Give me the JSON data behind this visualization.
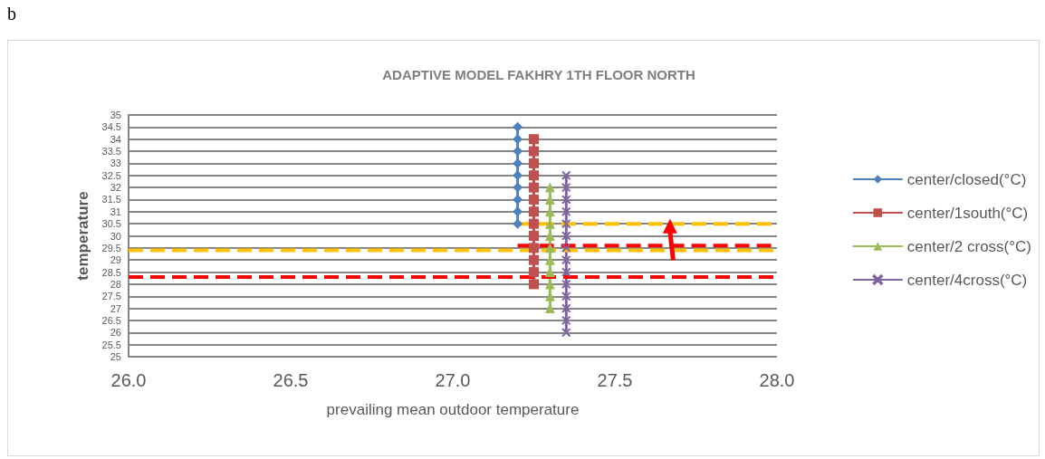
{
  "chart_data": {
    "type": "line",
    "title": "ADAPTIVE MODEL FAKHRY 1TH FLOOR NORTH",
    "xlabel": "prevailing mean outdoor temperature",
    "ylabel": "temperature",
    "annotations": [
      "b"
    ],
    "xlim": [
      26,
      28
    ],
    "xticks": [
      {
        "value": 26,
        "label": "26.0"
      },
      {
        "value": 26.5,
        "label": "26.5"
      },
      {
        "value": 27,
        "label": "27.0"
      },
      {
        "value": 27.5,
        "label": "27.5"
      },
      {
        "value": 28,
        "label": "28.0"
      }
    ],
    "ylim": [
      25,
      35
    ],
    "yticks": [
      25,
      25.5,
      26,
      26.5,
      27,
      27.5,
      28,
      28.5,
      29,
      29.5,
      30,
      30.5,
      31,
      31.5,
      32,
      32.5,
      33,
      33.5,
      34,
      34.5,
      35
    ],
    "grid": "y",
    "legend": "right",
    "series": [
      {
        "name": "center/closed(°C)",
        "color": "#4f81bd",
        "marker": "diamond",
        "x": [
          27.2,
          27.2,
          27.2,
          27.2,
          27.2,
          27.2,
          27.2,
          27.2,
          27.2
        ],
        "values": [
          30.5,
          31,
          31.5,
          32,
          32.5,
          33,
          33.5,
          34,
          34.5
        ]
      },
      {
        "name": "center/1south(°C)",
        "color": "#c0504d",
        "marker": "square",
        "x": [
          27.25,
          27.25,
          27.25,
          27.25,
          27.25,
          27.25,
          27.25,
          27.25,
          27.25,
          27.25,
          27.25,
          27.25,
          27.25
        ],
        "values": [
          28,
          28.5,
          29,
          29.5,
          30,
          30.5,
          31,
          31.5,
          32,
          32.5,
          33,
          33.5,
          34
        ]
      },
      {
        "name": "center/2 cross(°C)",
        "color": "#9bbb59",
        "marker": "triangle",
        "x": [
          27.3,
          27.3,
          27.3,
          27.3,
          27.3,
          27.3,
          27.3,
          27.3,
          27.3,
          27.3,
          27.3
        ],
        "values": [
          27,
          27.5,
          28,
          28.5,
          29,
          29.5,
          30,
          30.5,
          31,
          31.5,
          32
        ]
      },
      {
        "name": "center/4cross(°C)",
        "color": "#8064a2",
        "marker": "cross",
        "x": [
          27.35,
          27.35,
          27.35,
          27.35,
          27.35,
          27.35,
          27.35,
          27.35,
          27.35,
          27.35,
          27.35,
          27.35,
          27.35,
          27.35
        ],
        "values": [
          26,
          26.5,
          27,
          27.5,
          28,
          28.5,
          29,
          29.5,
          30,
          30.5,
          31,
          31.5,
          32,
          32.5
        ]
      },
      {
        "color": "#ffc000",
        "marker": "none",
        "line_style": "dashed",
        "x": [
          26,
          28
        ],
        "values": [
          29.4,
          29.4
        ]
      },
      {
        "color": "#ff0000",
        "marker": "none",
        "line_style": "dashed",
        "x": [
          26,
          28
        ],
        "values": [
          28.3,
          28.3
        ]
      },
      {
        "color": "#ffc000",
        "marker": "none",
        "line_style": "dashed",
        "x": [
          27.2,
          28
        ],
        "values": [
          30.5,
          30.5
        ]
      },
      {
        "color": "#ff0000",
        "marker": "none",
        "line_style": "dashed",
        "x": [
          27.2,
          28
        ],
        "values": [
          29.6,
          29.6
        ]
      }
    ]
  }
}
